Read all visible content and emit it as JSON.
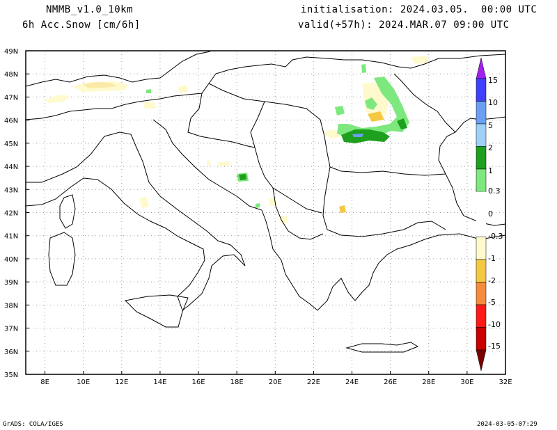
{
  "header": {
    "model": "NMMB_v1.0_10km",
    "variable": "6h Acc.Snow [cm/6h]",
    "init": "initialisation: 2024.03.05.  00:00 UTC",
    "valid": "valid(+57h): 2024.MAR.07 09:00 UTC"
  },
  "axes": {
    "lat_labels": [
      "49N",
      "48N",
      "47N",
      "46N",
      "45N",
      "44N",
      "43N",
      "42N",
      "41N",
      "40N",
      "39N",
      "38N",
      "37N",
      "36N",
      "35N"
    ],
    "lon_labels": [
      "8E",
      "10E",
      "12E",
      "14E",
      "16E",
      "18E",
      "20E",
      "22E",
      "24E",
      "26E",
      "28E",
      "30E",
      "32E"
    ]
  },
  "colorbar": {
    "labels": [
      "15",
      "10",
      "5",
      "2",
      "1",
      "0.3",
      "0",
      "-0.3",
      "-1",
      "-2",
      "-5",
      "-10",
      "-15"
    ],
    "colors": [
      "#a020f0",
      "#4040ff",
      "#6a9ff5",
      "#9fd0f8",
      "#1ea01e",
      "#7de87d",
      "#ffffff",
      "#fffacd",
      "#f5c842",
      "#f58c3c",
      "#ff1a1a",
      "#c80000",
      "#7a0000"
    ]
  },
  "footer": {
    "left": "GrADS: COLA/IGES",
    "right": "2024-03-05-07:29"
  }
}
